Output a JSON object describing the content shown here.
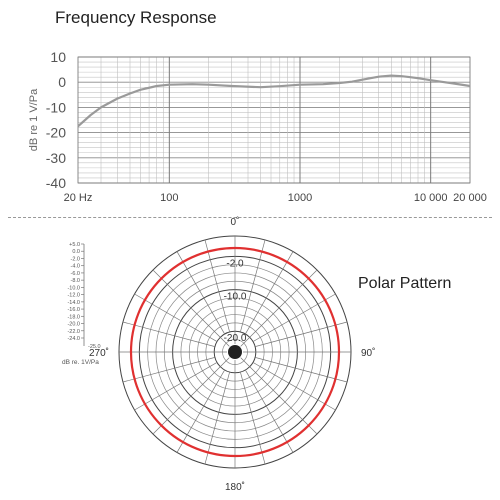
{
  "chart_data": [
    {
      "type": "line",
      "title": "Frequency Response",
      "xlabel": "",
      "ylabel": "dB re 1 V/Pa",
      "xscale": "log",
      "xlim": [
        20,
        20000
      ],
      "ylim": [
        -40,
        10
      ],
      "grid": true,
      "xtick_values": [
        20,
        100,
        1000,
        10000,
        20000
      ],
      "xtick_labels": [
        "20 Hz",
        "100",
        "1000",
        "10 000",
        "20 000"
      ],
      "ytick_values": [
        10,
        0,
        -10,
        -20,
        -30,
        -40
      ],
      "ytick_labels": [
        "10",
        "0",
        "-10",
        "-20",
        "-30",
        "-40"
      ],
      "series": [
        {
          "color": "#9a9a9a",
          "x": [
            20,
            25,
            30,
            40,
            50,
            60,
            80,
            100,
            150,
            200,
            300,
            500,
            700,
            1000,
            1500,
            2000,
            2500,
            3000,
            4000,
            5000,
            6000,
            7000,
            8000,
            10000,
            12000,
            15000,
            20000
          ],
          "y": [
            -17.5,
            -13,
            -10,
            -6.5,
            -4.5,
            -3,
            -1.5,
            -1,
            -0.8,
            -1,
            -1.5,
            -2,
            -1.6,
            -1,
            -0.8,
            -0.3,
            0.2,
            1,
            2.2,
            2.6,
            2.4,
            2,
            1.6,
            0.8,
            0.2,
            -0.5,
            -1.5
          ]
        }
      ]
    },
    {
      "type": "polar",
      "title": "Polar Pattern",
      "angle_labels": [
        {
          "angle": 0,
          "text": "0˚"
        },
        {
          "angle": 90,
          "text": "90˚"
        },
        {
          "angle": 180,
          "text": "180˚"
        },
        {
          "angle": 270,
          "text": "270˚"
        }
      ],
      "ring_labels": [
        {
          "db": -2,
          "text": "-2.0"
        },
        {
          "db": -10,
          "text": "-10.0"
        },
        {
          "db": -20,
          "text": "-20.0"
        }
      ],
      "scale_labels": [
        "+5.0",
        "0.0",
        "-2.0",
        "-4.0",
        "-6.0",
        "-8.0",
        "-10.0",
        "-12.0",
        "-14.0",
        "-16.0",
        "-18.0",
        "-20.0",
        "-22.0",
        "-24.0"
      ],
      "scale_extra": "-25.0",
      "scale_units": "dB re. 1V/Pa",
      "pattern": {
        "name": "omnidirectional",
        "level_db": 0,
        "color": "#e03030"
      }
    }
  ]
}
